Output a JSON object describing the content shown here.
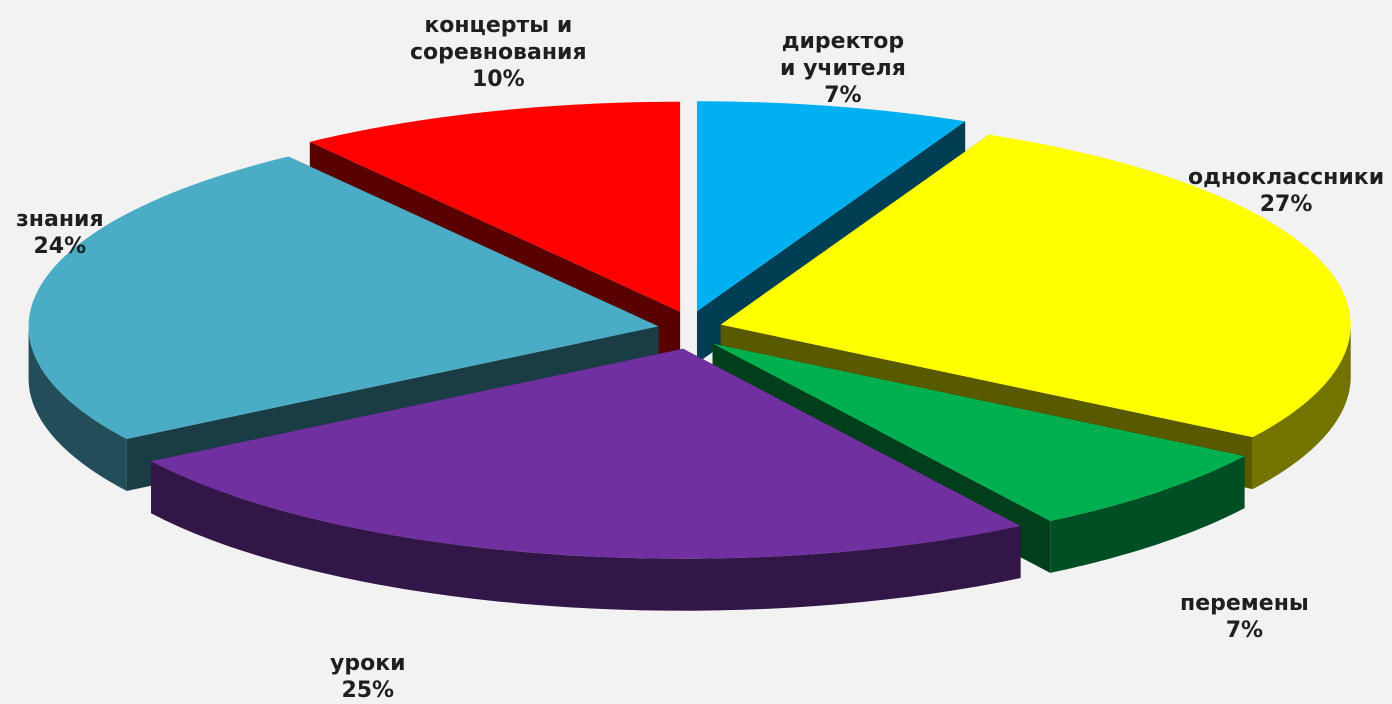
{
  "chart_data": {
    "type": "pie",
    "title": "",
    "slices": [
      {
        "label": "директор\nи учителя",
        "value": 7,
        "value_label": "7%",
        "color": "#00b0f0"
      },
      {
        "label": "одноклассники",
        "value": 27,
        "value_label": "27%",
        "color": "#ffff00"
      },
      {
        "label": "перемены",
        "value": 7,
        "value_label": "7%",
        "color": "#00b050"
      },
      {
        "label": "уроки",
        "value": 25,
        "value_label": "25%",
        "color": "#7030a0"
      },
      {
        "label": "знания",
        "value": 24,
        "value_label": "24%",
        "color": "#4bacc6"
      },
      {
        "label": "концерты и\nсоревнования",
        "value": 10,
        "value_label": "10%",
        "color": "#ff0000"
      }
    ],
    "exploded": true,
    "style": "3d",
    "legend": "none"
  },
  "background_color": "#f2f2f2"
}
